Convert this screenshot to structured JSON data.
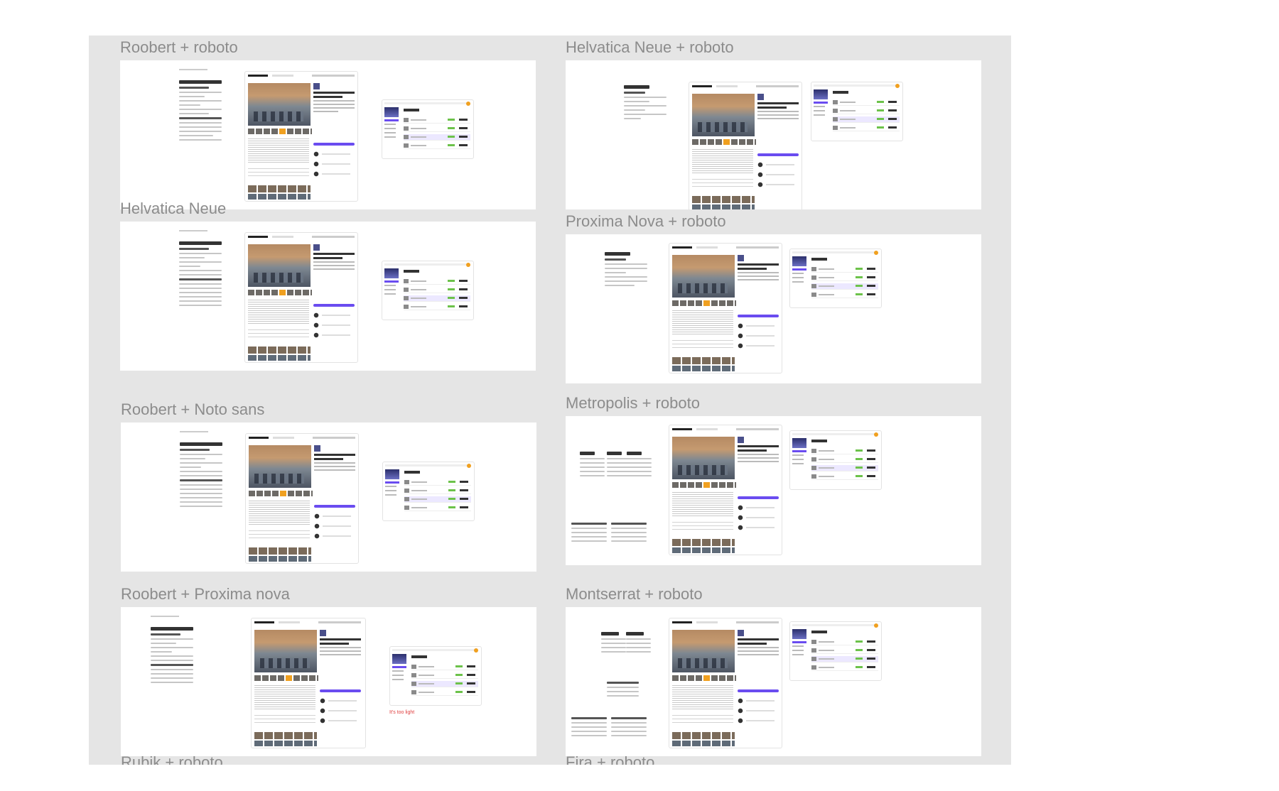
{
  "boards": [
    {
      "id": "roobert-roboto",
      "label": "Roobert + roboto"
    },
    {
      "id": "helvatica-neue-roboto",
      "label": "Helvatica Neue + roboto"
    },
    {
      "id": "helvatica-neue",
      "label": "Helvatica Neue"
    },
    {
      "id": "proxima-nova-roboto",
      "label": "Proxima Nova + roboto"
    },
    {
      "id": "roobert-noto-sans",
      "label": "Roobert + Noto sans"
    },
    {
      "id": "metropolis-roboto",
      "label": "Metropolis + roboto"
    },
    {
      "id": "roobert-proxima-nova",
      "label": "Roobert + Proxima nova",
      "note": "It's too light"
    },
    {
      "id": "montserrat-roboto",
      "label": "Montserrat + roboto"
    },
    {
      "id": "rubik-roboto",
      "label": "Rubik + roboto"
    },
    {
      "id": "fira-roboto",
      "label": "Fira + roboto"
    }
  ],
  "colors": {
    "canvas": "#e5e5e5",
    "label": "#8c8c8c",
    "accent": "#6a4cf0",
    "available": "#6cc24a",
    "highlight": "#f0a020",
    "note": "#e04040"
  }
}
